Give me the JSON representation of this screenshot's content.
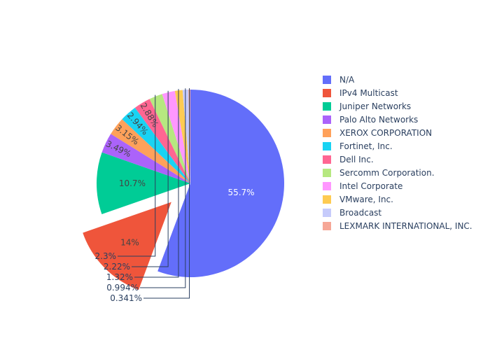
{
  "chart_data": {
    "type": "pie",
    "title": "",
    "slices": [
      {
        "label": "N/A",
        "value": 55.7,
        "text": "55.7%",
        "color": "#636efa"
      },
      {
        "label": "IPv4 Multicast",
        "value": 14.0,
        "text": "14%",
        "color": "#ef553b",
        "pulled": true
      },
      {
        "label": "Juniper Networks",
        "value": 10.7,
        "text": "10.7%",
        "color": "#00cc96"
      },
      {
        "label": "Palo Alto Networks",
        "value": 3.49,
        "text": "3.49%",
        "color": "#ab63fa"
      },
      {
        "label": "XEROX CORPORATION",
        "value": 3.15,
        "text": "3.15%",
        "color": "#ffa15a"
      },
      {
        "label": "Fortinet, Inc.",
        "value": 2.94,
        "text": "2.94%",
        "color": "#19d3f3"
      },
      {
        "label": "Dell Inc.",
        "value": 2.88,
        "text": "2.88%",
        "color": "#ff6692"
      },
      {
        "label": "Sercomm Corporation.",
        "value": 2.3,
        "text": "2.3%",
        "color": "#b6e880"
      },
      {
        "label": "Intel Corporate",
        "value": 2.22,
        "text": "2.22%",
        "color": "#ff97ff"
      },
      {
        "label": "VMware, Inc.",
        "value": 1.32,
        "text": "1.32%",
        "color": "#fecb52"
      },
      {
        "label": "Broadcast",
        "value": 0.994,
        "text": "0.994%",
        "color": "#c6cbfb"
      },
      {
        "label": "LEXMARK INTERNATIONAL, INC.",
        "value": 0.341,
        "text": "0.341%",
        "color": "#f6a797"
      }
    ],
    "legend_position": "right",
    "sort": "descending",
    "direction": "clockwise"
  }
}
